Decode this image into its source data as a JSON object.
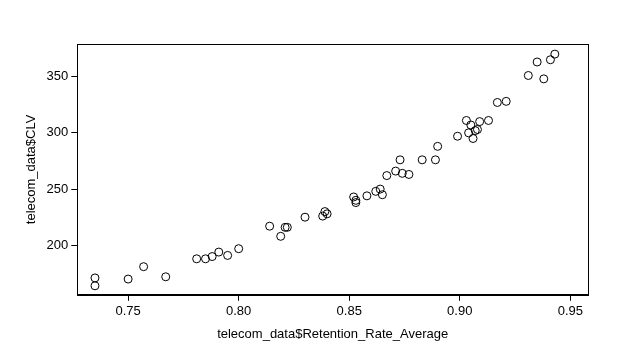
{
  "chart_data": {
    "type": "scatter",
    "x_label": "telecom_data$Retention_Rate_Average",
    "y_label": "telecom_data$CLV",
    "x": [
      0.735,
      0.735,
      0.75,
      0.757,
      0.767,
      0.781,
      0.785,
      0.788,
      0.791,
      0.795,
      0.8,
      0.814,
      0.819,
      0.821,
      0.822,
      0.83,
      0.838,
      0.839,
      0.84,
      0.852,
      0.853,
      0.853,
      0.858,
      0.862,
      0.864,
      0.865,
      0.867,
      0.871,
      0.873,
      0.874,
      0.877,
      0.883,
      0.889,
      0.89,
      0.899,
      0.903,
      0.904,
      0.905,
      0.906,
      0.907,
      0.908,
      0.909,
      0.913,
      0.917,
      0.921,
      0.931,
      0.935,
      0.938,
      0.941,
      0.943
    ],
    "values": [
      171,
      164,
      170,
      181,
      172,
      188,
      188,
      190,
      194,
      191,
      197,
      217,
      208,
      216,
      216,
      225,
      226,
      230,
      228,
      243,
      238,
      240,
      244,
      248,
      250,
      245,
      262,
      266,
      276,
      264,
      263,
      276,
      276,
      288,
      297,
      311,
      300,
      307,
      295,
      302,
      303,
      310,
      311,
      327,
      328,
      351,
      363,
      348,
      365,
      370
    ],
    "color": "#000000",
    "marker": "circle",
    "xlim": [
      0.727,
      0.958
    ],
    "ylim": [
      156,
      379
    ],
    "xticks": [
      0.75,
      {
        "value": 0.8,
        "label": "0.80"
      },
      0.85,
      {
        "value": 0.9,
        "label": "0.90"
      },
      0.95
    ],
    "yticks": [
      200,
      250,
      300,
      350
    ],
    "grid": false
  }
}
